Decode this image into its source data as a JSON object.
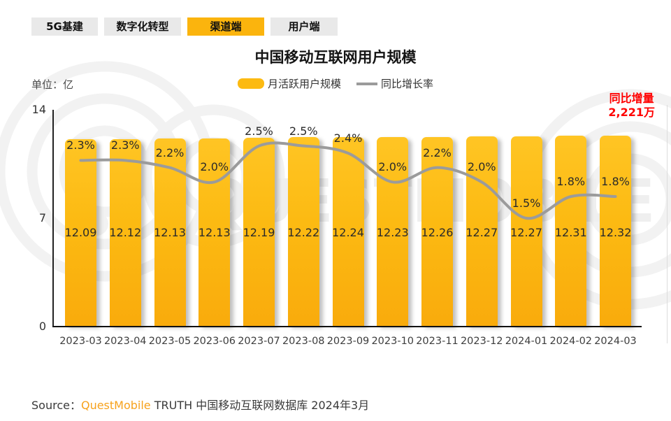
{
  "tabs": [
    {
      "id": "5g-infra",
      "label": "5G基建",
      "active": false
    },
    {
      "id": "digital-transformation",
      "label": "数字化转型",
      "active": false
    },
    {
      "id": "channel",
      "label": "渠道端",
      "active": true
    },
    {
      "id": "user",
      "label": "用户端",
      "active": false
    }
  ],
  "header": {
    "title": "中国移动互联网用户规模",
    "unit_label": "单位：亿"
  },
  "watermark": {
    "text": "QUESTMOBILE"
  },
  "chart_data": {
    "type": "bar",
    "title": "中国移动互联网用户规模",
    "unit": "亿",
    "categories": [
      "2023-03",
      "2023-04",
      "2023-05",
      "2023-06",
      "2023-07",
      "2023-08",
      "2023-09",
      "2023-10",
      "2023-11",
      "2023-12",
      "2024-01",
      "2024-02",
      "2024-03"
    ],
    "series": [
      {
        "name": "月活跃用户规模",
        "type": "bar",
        "unit": "亿",
        "values": [
          12.09,
          12.12,
          12.13,
          12.13,
          12.19,
          12.22,
          12.24,
          12.23,
          12.26,
          12.27,
          12.27,
          12.31,
          12.32
        ]
      },
      {
        "name": "同比增长率",
        "type": "line",
        "unit": "%",
        "values": [
          2.3,
          2.3,
          2.2,
          2.0,
          2.5,
          2.5,
          2.4,
          2.0,
          2.2,
          2.0,
          1.5,
          1.8,
          1.8
        ]
      }
    ],
    "y_axis": {
      "ticks": [
        0,
        7,
        14
      ],
      "min": 0,
      "max": 14
    },
    "secondary_y_axis": {
      "min": 0,
      "max": 3,
      "visible": false
    },
    "grid": false,
    "legend_position": "top",
    "annotation": {
      "label": "同比增量",
      "value": "2,221万"
    }
  },
  "source": {
    "prefix": "Source：",
    "brand": "QuestMobile",
    "rest": " TRUTH 中国移动互联网数据库 2024年3月"
  },
  "colors": {
    "bar": "#FCBA12",
    "bar_top": "#FFC524",
    "bar_bottom": "#F9AB0C",
    "line": "#9B9B9B",
    "accent_red": "#FF0000",
    "brand_orange": "#F7A21C",
    "tab_bg": "#E9E9E9",
    "tab_active_bg": "#FBB40D",
    "watermark": "#EFEFEF"
  }
}
